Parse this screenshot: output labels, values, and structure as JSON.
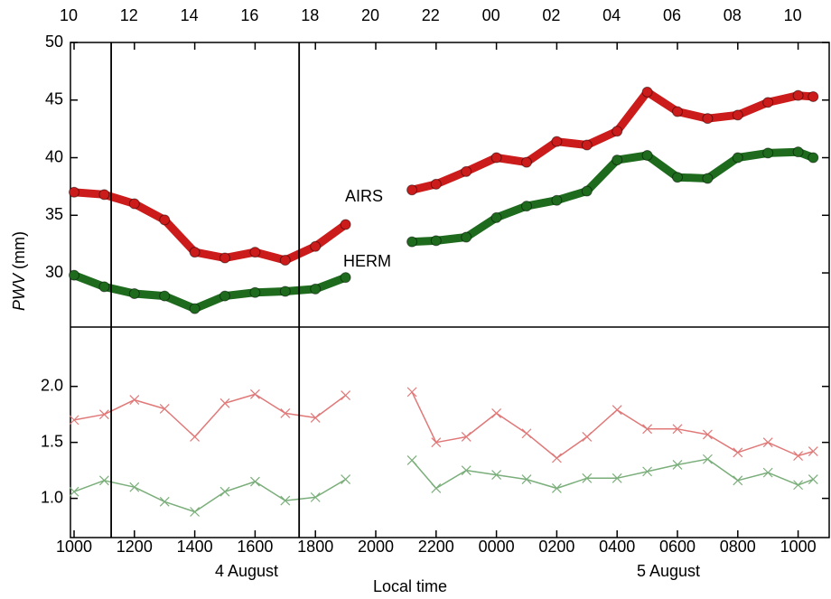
{
  "chart_data": {
    "type": "line",
    "x": [
      10,
      11,
      12,
      13,
      14,
      15,
      16,
      17,
      18,
      19,
      20,
      21.2,
      22,
      23,
      24,
      25,
      26,
      27,
      28,
      29,
      30,
      31,
      32,
      33,
      34,
      34.5
    ],
    "xlim": [
      9.88,
      35.03
    ],
    "xticks": [
      {
        "value": 10,
        "label": "1000"
      },
      {
        "value": 12,
        "label": "1200"
      },
      {
        "value": 14,
        "label": "1400"
      },
      {
        "value": 16,
        "label": "1600"
      },
      {
        "value": 18,
        "label": "1800"
      },
      {
        "value": 20,
        "label": "2000"
      },
      {
        "value": 22,
        "label": "2200"
      },
      {
        "value": 24,
        "label": "0000"
      },
      {
        "value": 26,
        "label": "0200"
      },
      {
        "value": 28,
        "label": "0400"
      },
      {
        "value": 30,
        "label": "0600"
      },
      {
        "value": 32,
        "label": "0800"
      },
      {
        "value": 34,
        "label": "1000"
      }
    ],
    "x2ticks": [
      10,
      12,
      14,
      16,
      18,
      20,
      22,
      {
        "value": 24,
        "label": "00"
      },
      {
        "value": 26,
        "label": "02"
      },
      {
        "value": 28,
        "label": "04"
      },
      {
        "value": 30,
        "label": "06"
      },
      {
        "value": 32,
        "label": "08"
      },
      {
        "value": 34,
        "label": "10"
      }
    ],
    "xlabel": "Local time",
    "date_labels": [
      "4 August",
      "5 August"
    ],
    "vlines": [
      11.23,
      17.46
    ],
    "panels": [
      {
        "ylim": [
          25.3,
          50
        ],
        "yticks": [
          30,
          35,
          40,
          45,
          50
        ],
        "ylabel_var": "PWV",
        "ylabel_unit": "(mm)",
        "series": [
          {
            "name": "AIRS",
            "color": "#cc1b1b",
            "values": [
              37.0,
              36.8,
              36.0,
              34.6,
              31.8,
              31.3,
              31.8,
              31.1,
              32.3,
              34.2,
              null,
              37.2,
              37.7,
              38.8,
              40.0,
              39.6,
              41.4,
              41.1,
              42.3,
              45.7,
              44.0,
              43.4,
              43.7,
              44.8,
              45.4,
              45.3
            ]
          },
          {
            "name": "HERM",
            "color": "#1e6b1e",
            "values": [
              29.8,
              28.8,
              28.2,
              28.0,
              26.9,
              28.0,
              28.3,
              28.4,
              28.6,
              29.6,
              null,
              32.7,
              32.8,
              33.1,
              34.8,
              35.8,
              36.3,
              37.1,
              39.8,
              40.2,
              38.3,
              38.2,
              40.0,
              40.4,
              40.5,
              40.0
            ]
          }
        ]
      },
      {
        "ylim": [
          0.65,
          2.53
        ],
        "yticks": [
          {
            "value": 1,
            "label": "1.0"
          },
          {
            "value": 1.5,
            "label": "1.5"
          },
          {
            "value": 2,
            "label": "2.0"
          }
        ],
        "series": [
          {
            "color": "#e07878",
            "values": [
              1.7,
              1.75,
              1.88,
              1.8,
              1.55,
              1.85,
              1.93,
              1.76,
              1.72,
              1.92,
              null,
              1.95,
              1.5,
              1.55,
              1.76,
              1.58,
              1.36,
              1.55,
              1.79,
              1.62,
              1.62,
              1.57,
              1.41,
              1.5,
              1.38,
              1.42
            ]
          },
          {
            "color": "#7aae7a",
            "values": [
              1.06,
              1.16,
              1.1,
              0.97,
              0.88,
              1.06,
              1.15,
              0.98,
              1.01,
              1.17,
              null,
              1.34,
              1.09,
              1.25,
              1.21,
              1.17,
              1.09,
              1.18,
              1.18,
              1.24,
              1.3,
              1.35,
              1.16,
              1.23,
              1.12,
              1.17
            ]
          }
        ]
      }
    ]
  }
}
